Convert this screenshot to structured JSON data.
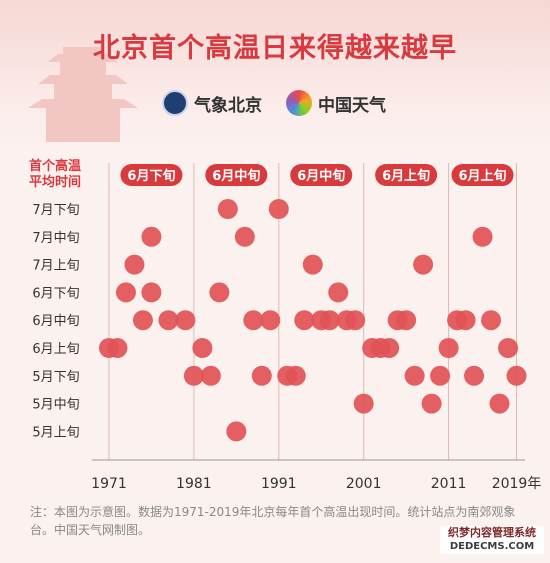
{
  "title": "北京首个高温日来得越来越早",
  "logos": [
    {
      "name": "气象北京",
      "icon": "beijing-weather-seal-icon"
    },
    {
      "name": "中国天气",
      "icon": "china-weather-swirl-icon"
    }
  ],
  "note": "注：本图为示意图。数据为1971-2019年北京每年首个高温出现时间。统计站点为南郊观象台。中国天气网制图。",
  "brand": {
    "name": "织梦内容管理系统",
    "url": "DEDECMS.COM"
  },
  "colors": {
    "accent": "#d83a3f",
    "point": "#e25256",
    "badge": "#d93a3e",
    "grid": "#e0b8b6"
  },
  "chart_data": {
    "type": "scatter",
    "ylabel_lines": [
      "首个高温",
      "平均时间"
    ],
    "x_ticks": [
      "1971",
      "1981",
      "1991",
      "2001",
      "2011",
      "2019年"
    ],
    "x_tick_values": [
      1971,
      1981,
      1991,
      2001,
      2011,
      2019
    ],
    "xlim": [
      1969,
      2020
    ],
    "y_categories": [
      "5月上旬",
      "5月中旬",
      "5月下旬",
      "6月上旬",
      "6月中旬",
      "6月下旬",
      "7月上旬",
      "7月中旬",
      "7月下旬"
    ],
    "decade_badges": [
      "6月下旬",
      "6月中旬",
      "6月中旬",
      "6月上旬",
      "6月上旬"
    ],
    "grid": true,
    "points": [
      {
        "x": 1971,
        "y": "6月上旬"
      },
      {
        "x": 1972,
        "y": "6月上旬"
      },
      {
        "x": 1973,
        "y": "6月下旬"
      },
      {
        "x": 1974,
        "y": "7月上旬"
      },
      {
        "x": 1975,
        "y": "6月中旬"
      },
      {
        "x": 1976,
        "y": "7月中旬"
      },
      {
        "x": 1976,
        "y": "6月下旬"
      },
      {
        "x": 1978,
        "y": "6月中旬"
      },
      {
        "x": 1980,
        "y": "6月中旬"
      },
      {
        "x": 1981,
        "y": "5月下旬"
      },
      {
        "x": 1982,
        "y": "6月上旬"
      },
      {
        "x": 1983,
        "y": "5月下旬"
      },
      {
        "x": 1984,
        "y": "6月下旬"
      },
      {
        "x": 1985,
        "y": "7月下旬"
      },
      {
        "x": 1986,
        "y": "5月上旬"
      },
      {
        "x": 1987,
        "y": "7月中旬"
      },
      {
        "x": 1988,
        "y": "6月中旬"
      },
      {
        "x": 1989,
        "y": "5月下旬"
      },
      {
        "x": 1990,
        "y": "6月中旬"
      },
      {
        "x": 1991,
        "y": "7月下旬"
      },
      {
        "x": 1992,
        "y": "5月下旬"
      },
      {
        "x": 1993,
        "y": "5月下旬"
      },
      {
        "x": 1994,
        "y": "6月中旬"
      },
      {
        "x": 1995,
        "y": "7月上旬"
      },
      {
        "x": 1996,
        "y": "6月中旬"
      },
      {
        "x": 1997,
        "y": "6月中旬"
      },
      {
        "x": 1998,
        "y": "6月下旬"
      },
      {
        "x": 1999,
        "y": "6月中旬"
      },
      {
        "x": 2000,
        "y": "6月中旬"
      },
      {
        "x": 2001,
        "y": "5月中旬"
      },
      {
        "x": 2002,
        "y": "6月上旬"
      },
      {
        "x": 2003,
        "y": "6月上旬"
      },
      {
        "x": 2004,
        "y": "6月上旬"
      },
      {
        "x": 2005,
        "y": "6月中旬"
      },
      {
        "x": 2006,
        "y": "6月中旬"
      },
      {
        "x": 2007,
        "y": "5月下旬"
      },
      {
        "x": 2008,
        "y": "7月上旬"
      },
      {
        "x": 2009,
        "y": "5月中旬"
      },
      {
        "x": 2010,
        "y": "5月下旬"
      },
      {
        "x": 2011,
        "y": "6月上旬"
      },
      {
        "x": 2012,
        "y": "6月中旬"
      },
      {
        "x": 2013,
        "y": "6月中旬"
      },
      {
        "x": 2014,
        "y": "5月下旬"
      },
      {
        "x": 2015,
        "y": "7月中旬"
      },
      {
        "x": 2016,
        "y": "6月中旬"
      },
      {
        "x": 2017,
        "y": "5月中旬"
      },
      {
        "x": 2018,
        "y": "6月上旬"
      },
      {
        "x": 2019,
        "y": "5月下旬"
      }
    ]
  }
}
